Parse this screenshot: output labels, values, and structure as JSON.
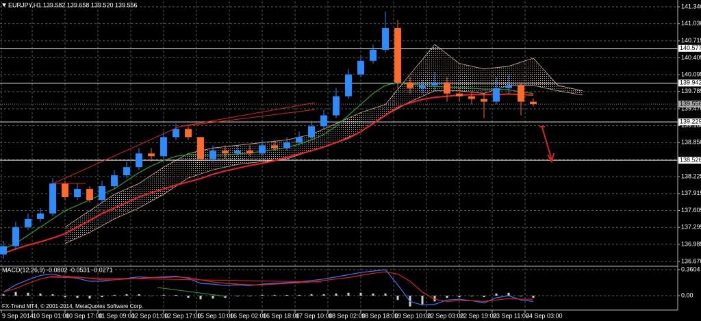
{
  "chart_data": [
    {
      "type": "candlestick",
      "title": "EURJPY,H1  139.582 139.658 139.520 139.556",
      "footer": "FX-Trend MT4, © 2001-2014, MetaQuotes Software Corp.",
      "x": [
        0,
        6,
        12,
        18,
        24,
        30,
        36,
        42,
        48,
        54,
        60,
        66,
        72,
        78,
        84,
        90,
        96,
        102,
        108,
        114,
        120,
        126,
        132,
        138,
        144,
        150,
        156,
        162,
        168,
        174,
        180,
        186,
        192,
        198,
        204,
        210,
        216,
        222,
        228,
        234,
        240,
        246,
        252,
        258
      ],
      "open": [
        136.8,
        136.95,
        137.3,
        137.45,
        137.55,
        138.1,
        137.85,
        138.0,
        137.8,
        138.05,
        138.25,
        138.4,
        138.65,
        138.6,
        138.95,
        139.1,
        138.95,
        138.55,
        138.7,
        138.65,
        138.7,
        138.65,
        138.8,
        138.75,
        138.85,
        138.95,
        139.15,
        139.35,
        139.7,
        140.1,
        140.35,
        140.55,
        140.95,
        139.95,
        139.85,
        139.9,
        139.95,
        139.75,
        139.7,
        139.65,
        139.6,
        139.85,
        139.9,
        139.6
      ],
      "high": [
        137.05,
        137.4,
        137.55,
        137.65,
        138.2,
        138.15,
        138.1,
        138.05,
        138.15,
        138.35,
        138.5,
        138.75,
        138.75,
        139.05,
        139.2,
        139.15,
        138.95,
        138.8,
        138.8,
        138.8,
        138.8,
        138.9,
        138.9,
        138.95,
        139.05,
        139.25,
        139.45,
        139.85,
        140.2,
        140.45,
        140.65,
        141.25,
        141.1,
        140.05,
        140.0,
        140.15,
        140.05,
        139.85,
        139.8,
        139.75,
        140.05,
        140.1,
        139.95,
        139.658
      ],
      "low": [
        136.72,
        136.88,
        137.25,
        137.4,
        137.5,
        137.8,
        137.8,
        137.75,
        137.75,
        138.0,
        138.2,
        138.35,
        138.5,
        138.55,
        138.9,
        138.9,
        138.5,
        138.5,
        138.55,
        138.6,
        138.6,
        138.6,
        138.7,
        138.7,
        138.8,
        138.9,
        139.1,
        139.3,
        139.65,
        140.05,
        140.3,
        140.5,
        139.85,
        139.75,
        139.75,
        139.8,
        139.6,
        139.6,
        139.55,
        139.3,
        139.55,
        139.75,
        139.35,
        139.52
      ],
      "close": [
        136.95,
        137.3,
        137.45,
        137.55,
        138.1,
        137.85,
        138.0,
        137.8,
        138.05,
        138.25,
        138.4,
        138.65,
        138.6,
        138.95,
        139.1,
        138.95,
        138.55,
        138.7,
        138.65,
        138.7,
        138.65,
        138.8,
        138.75,
        138.85,
        138.95,
        139.15,
        139.35,
        139.7,
        140.1,
        140.35,
        140.55,
        140.95,
        139.95,
        139.85,
        139.9,
        139.95,
        139.75,
        139.7,
        139.65,
        139.6,
        139.85,
        139.9,
        139.6,
        139.556
      ],
      "up_color": "#2a8cff",
      "down_color": "#ff6a2a",
      "overlays": [
        {
          "color": "#ff2020",
          "values": [
            136.82,
            136.9,
            136.97,
            137.03,
            137.1,
            137.18,
            137.3,
            137.42,
            137.55,
            137.65,
            137.75,
            137.85,
            137.93,
            138.0,
            138.07,
            138.13,
            138.19,
            138.27,
            138.33,
            138.38,
            138.43,
            138.47,
            138.52,
            138.58,
            138.64,
            138.7,
            138.77,
            138.85,
            138.93,
            139.05,
            139.2,
            139.35,
            139.5,
            139.58,
            139.64,
            139.68,
            139.7,
            139.72,
            139.73,
            139.73,
            139.73,
            139.74,
            139.73,
            139.72
          ]
        },
        {
          "color": "#1faa1f",
          "values": [
            136.9,
            137.0,
            137.15,
            137.3,
            137.45,
            137.6,
            137.7,
            137.8,
            137.9,
            138.0,
            138.15,
            138.3,
            138.42,
            138.52,
            138.6,
            138.63,
            138.62,
            138.62,
            138.62,
            138.64,
            138.66,
            138.69,
            138.72,
            138.76,
            138.82,
            138.9,
            139.0,
            139.15,
            139.35,
            139.55,
            139.75,
            139.9,
            139.95,
            139.92,
            139.9,
            139.88,
            139.87,
            139.86,
            139.85,
            139.83,
            139.83,
            139.82,
            139.78,
            139.75
          ]
        }
      ],
      "cloud": {
        "color": "#d9b49a",
        "x": [
          30,
          42,
          54,
          66,
          78,
          90,
          102,
          114,
          126,
          138,
          150,
          162,
          174,
          186,
          198,
          210,
          222,
          234,
          246,
          258,
          270,
          282
        ],
        "span_a": [
          137.0,
          137.2,
          137.45,
          137.65,
          137.9,
          138.2,
          138.35,
          138.45,
          138.5,
          138.55,
          138.7,
          138.85,
          139.05,
          139.35,
          139.6,
          139.8,
          139.8,
          139.75,
          139.9,
          139.9,
          139.8,
          139.72
        ],
        "span_b": [
          137.3,
          137.6,
          137.9,
          138.1,
          138.4,
          138.65,
          138.75,
          138.8,
          138.85,
          138.9,
          139.0,
          139.2,
          139.4,
          139.55,
          140.1,
          140.65,
          140.3,
          140.2,
          140.25,
          140.4,
          139.9,
          139.8
        ]
      },
      "levels": [
        140.577,
        139.942,
        139.229,
        138.526
      ],
      "bid": 139.556,
      "xlim": [
        -1.667,
        328.333
      ],
      "ylim": [
        136.595,
        141.44
      ],
      "yticks": [
        {
          "value": 141.34,
          "label": "141.340"
        },
        {
          "value": 141.03,
          "label": "141.030"
        },
        140.715,
        140.405,
        140.095,
        139.785,
        {
          "value": 139.47,
          "label": "139.470"
        },
        {
          "value": 139.16,
          "label": "139.160"
        },
        {
          "value": 138.85,
          "label": "138.850"
        },
        {
          "value": 138.54,
          "label": "138.540"
        },
        138.225,
        137.915,
        137.605,
        137.295,
        136.985,
        {
          "value": 136.67,
          "label": "136.670"
        }
      ],
      "xticks": [
        {
          "value": -1,
          "label": "9 Sep 2014"
        },
        {
          "value": 14,
          "label": "10 Sep 01:00"
        },
        {
          "value": 30,
          "label": "10 Sep 17:00"
        },
        {
          "value": 46,
          "label": "11 Sep 09:00"
        },
        {
          "value": 62,
          "label": "12 Sep 01:00"
        },
        {
          "value": 78,
          "label": "12 Sep 17:00"
        },
        {
          "value": 94,
          "label": "15 Sep 10:00"
        },
        {
          "value": 110,
          "label": "16 Sep 02:00"
        },
        {
          "value": 126,
          "label": "16 Sep 18:00"
        },
        {
          "value": 142,
          "label": "17 Sep 10:00"
        },
        {
          "value": 158,
          "label": "18 Sep 02:00"
        },
        {
          "value": 174,
          "label": "18 Sep 18:00"
        },
        {
          "value": 190,
          "label": "19 Sep 10:00"
        },
        {
          "value": 206,
          "label": "22 Sep 03:00"
        },
        {
          "value": 222,
          "label": "22 Sep 19:00"
        },
        {
          "value": 238,
          "label": "23 Sep 11:00"
        },
        {
          "value": 254,
          "label": "24 Sep 03:00"
        }
      ],
      "grid": true
    },
    {
      "type": "macd",
      "title": "MACD(12,26,9) -0.0802 -0.0531 -0.0271",
      "x": [
        0,
        6,
        12,
        18,
        24,
        30,
        36,
        42,
        48,
        54,
        60,
        66,
        72,
        78,
        84,
        90,
        96,
        102,
        108,
        114,
        120,
        126,
        132,
        138,
        144,
        150,
        156,
        162,
        168,
        174,
        180,
        186,
        192,
        198,
        204,
        210,
        216,
        222,
        228,
        234,
        240,
        246,
        252,
        258
      ],
      "series": [
        {
          "color": "#3a78ff",
          "values": [
            0.05,
            0.15,
            0.22,
            0.28,
            0.3,
            0.26,
            0.24,
            0.2,
            0.2,
            0.22,
            0.24,
            0.26,
            0.25,
            0.26,
            0.27,
            0.24,
            0.17,
            0.16,
            0.14,
            0.15,
            0.14,
            0.16,
            0.17,
            0.18,
            0.19,
            0.21,
            0.23,
            0.26,
            0.29,
            0.32,
            0.34,
            0.36,
            0.15,
            -0.08,
            -0.13,
            -0.12,
            -0.06,
            -0.05,
            -0.07,
            -0.1,
            -0.03,
            0.0,
            -0.06,
            -0.08
          ]
        },
        {
          "color": "#e02020",
          "values": [
            0.05,
            0.1,
            0.17,
            0.23,
            0.27,
            0.27,
            0.26,
            0.24,
            0.22,
            0.22,
            0.23,
            0.24,
            0.25,
            0.25,
            0.26,
            0.25,
            0.22,
            0.19,
            0.17,
            0.16,
            0.15,
            0.15,
            0.16,
            0.17,
            0.18,
            0.19,
            0.21,
            0.23,
            0.25,
            0.28,
            0.31,
            0.33,
            0.3,
            0.2,
            0.05,
            -0.05,
            -0.08,
            -0.07,
            -0.07,
            -0.08,
            -0.06,
            -0.04,
            -0.05,
            -0.05
          ]
        }
      ],
      "histogram": {
        "color": "#d0d0d0",
        "values": [
          0.02,
          0.05,
          0.04,
          0.03,
          0.02,
          -0.02,
          -0.03,
          -0.04,
          -0.02,
          0.01,
          0.02,
          0.02,
          0.0,
          0.01,
          0.01,
          -0.03,
          -0.05,
          -0.04,
          -0.03,
          -0.01,
          -0.01,
          0.01,
          0.01,
          0.01,
          0.01,
          0.02,
          0.02,
          0.03,
          0.04,
          0.04,
          0.03,
          0.03,
          -0.06,
          -0.15,
          -0.12,
          -0.08,
          -0.03,
          -0.02,
          -0.01,
          -0.02,
          0.03,
          0.04,
          -0.01,
          -0.03
        ]
      },
      "xlim": [
        -1.667,
        328.333
      ],
      "ylim": [
        -0.19,
        0.398
      ],
      "yticks": [
        0.3604,
        {
          "value": 0,
          "label": "0.00"
        }
      ],
      "grid": true
    }
  ]
}
